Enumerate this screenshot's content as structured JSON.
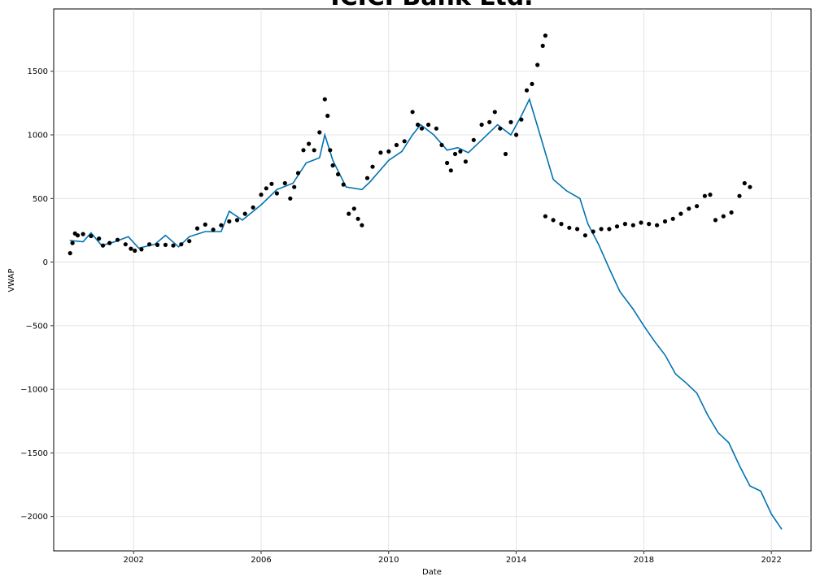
{
  "chart_data": {
    "type": "line",
    "title": "ICICI Bank Ltd.",
    "xlabel": "Date",
    "ylabel": "VWAP",
    "x_axis_type": "date",
    "xlim": [
      "1999-07-01",
      "2023-04-01"
    ],
    "ylim": [
      -2270,
      1990
    ],
    "x_ticks": [
      {
        "value": "2002-01-01",
        "label": "2002"
      },
      {
        "value": "2006-01-01",
        "label": "2006"
      },
      {
        "value": "2010-01-01",
        "label": "2010"
      },
      {
        "value": "2014-01-01",
        "label": "2014"
      },
      {
        "value": "2018-01-01",
        "label": "2018"
      },
      {
        "value": "2022-01-01",
        "label": "2022"
      }
    ],
    "y_ticks": [
      {
        "value": 1500,
        "label": "1500"
      },
      {
        "value": 1000,
        "label": "1000"
      },
      {
        "value": 500,
        "label": "500"
      },
      {
        "value": 0,
        "label": "0"
      },
      {
        "value": -500,
        "label": "−500"
      },
      {
        "value": -1000,
        "label": "−1000"
      },
      {
        "value": -1500,
        "label": "−1500"
      },
      {
        "value": -2000,
        "label": "−2000"
      }
    ],
    "grid": true,
    "series": [
      {
        "kind": "scatter",
        "color": "#000000",
        "points": [
          [
            "2000-01-05",
            70
          ],
          [
            "2000-02-01",
            150
          ],
          [
            "2000-03-01",
            225
          ],
          [
            "2000-04-01",
            210
          ],
          [
            "2000-06-01",
            220
          ],
          [
            "2000-09-01",
            205
          ],
          [
            "2000-12-01",
            185
          ],
          [
            "2001-01-15",
            130
          ],
          [
            "2001-04-01",
            150
          ],
          [
            "2001-07-01",
            175
          ],
          [
            "2001-10-01",
            140
          ],
          [
            "2001-12-01",
            105
          ],
          [
            "2002-01-15",
            90
          ],
          [
            "2002-04-01",
            100
          ],
          [
            "2002-07-01",
            140
          ],
          [
            "2002-10-01",
            135
          ],
          [
            "2003-01-01",
            135
          ],
          [
            "2003-04-01",
            130
          ],
          [
            "2003-07-01",
            140
          ],
          [
            "2003-10-01",
            165
          ],
          [
            "2004-01-01",
            265
          ],
          [
            "2004-04-01",
            295
          ],
          [
            "2004-07-01",
            255
          ],
          [
            "2004-10-01",
            290
          ],
          [
            "2005-01-01",
            320
          ],
          [
            "2005-04-01",
            330
          ],
          [
            "2005-07-01",
            380
          ],
          [
            "2005-10-01",
            430
          ],
          [
            "2006-01-01",
            530
          ],
          [
            "2006-03-01",
            580
          ],
          [
            "2006-05-01",
            615
          ],
          [
            "2006-07-01",
            540
          ],
          [
            "2006-10-01",
            620
          ],
          [
            "2006-12-01",
            500
          ],
          [
            "2007-01-15",
            590
          ],
          [
            "2007-03-01",
            700
          ],
          [
            "2007-05-01",
            880
          ],
          [
            "2007-07-01",
            930
          ],
          [
            "2007-09-01",
            880
          ],
          [
            "2007-11-01",
            1020
          ],
          [
            "2008-01-01",
            1280
          ],
          [
            "2008-02-01",
            1150
          ],
          [
            "2008-03-01",
            880
          ],
          [
            "2008-04-01",
            760
          ],
          [
            "2008-06-01",
            690
          ],
          [
            "2008-08-01",
            610
          ],
          [
            "2008-10-01",
            380
          ],
          [
            "2008-12-01",
            420
          ],
          [
            "2009-01-15",
            340
          ],
          [
            "2009-03-01",
            290
          ],
          [
            "2009-05-01",
            660
          ],
          [
            "2009-07-01",
            750
          ],
          [
            "2009-10-01",
            860
          ],
          [
            "2010-01-01",
            870
          ],
          [
            "2010-04-01",
            920
          ],
          [
            "2010-07-01",
            950
          ],
          [
            "2010-10-01",
            1180
          ],
          [
            "2010-12-01",
            1080
          ],
          [
            "2011-01-15",
            1050
          ],
          [
            "2011-04-01",
            1080
          ],
          [
            "2011-07-01",
            1050
          ],
          [
            "2011-09-01",
            920
          ],
          [
            "2011-11-01",
            780
          ],
          [
            "2011-12-15",
            720
          ],
          [
            "2012-02-01",
            850
          ],
          [
            "2012-04-01",
            870
          ],
          [
            "2012-06-01",
            790
          ],
          [
            "2012-09-01",
            960
          ],
          [
            "2012-12-01",
            1080
          ],
          [
            "2013-03-01",
            1100
          ],
          [
            "2013-05-01",
            1180
          ],
          [
            "2013-07-01",
            1050
          ],
          [
            "2013-09-01",
            850
          ],
          [
            "2013-11-01",
            1100
          ],
          [
            "2014-01-01",
            1000
          ],
          [
            "2014-03-01",
            1120
          ],
          [
            "2014-05-01",
            1350
          ],
          [
            "2014-07-01",
            1400
          ],
          [
            "2014-09-01",
            1550
          ],
          [
            "2014-11-01",
            1700
          ],
          [
            "2014-12-01",
            1780
          ],
          [
            "2014-12-01",
            360
          ],
          [
            "2015-03-01",
            330
          ],
          [
            "2015-06-01",
            300
          ],
          [
            "2015-09-01",
            270
          ],
          [
            "2015-12-01",
            260
          ],
          [
            "2016-03-01",
            210
          ],
          [
            "2016-06-01",
            240
          ],
          [
            "2016-09-01",
            260
          ],
          [
            "2016-12-01",
            260
          ],
          [
            "2017-03-01",
            280
          ],
          [
            "2017-06-01",
            300
          ],
          [
            "2017-09-01",
            290
          ],
          [
            "2017-12-01",
            310
          ],
          [
            "2018-03-01",
            300
          ],
          [
            "2018-06-01",
            290
          ],
          [
            "2018-09-01",
            320
          ],
          [
            "2018-12-01",
            340
          ],
          [
            "2019-03-01",
            380
          ],
          [
            "2019-06-01",
            420
          ],
          [
            "2019-09-01",
            440
          ],
          [
            "2019-12-01",
            520
          ],
          [
            "2020-02-01",
            530
          ],
          [
            "2020-04-01",
            330
          ],
          [
            "2020-07-01",
            360
          ],
          [
            "2020-10-01",
            390
          ],
          [
            "2021-01-01",
            520
          ],
          [
            "2021-03-01",
            620
          ],
          [
            "2021-05-01",
            590
          ]
        ]
      },
      {
        "kind": "line",
        "color": "#0072b2",
        "points": [
          [
            "2000-01-01",
            170
          ],
          [
            "2000-06-01",
            160
          ],
          [
            "2000-09-01",
            230
          ],
          [
            "2001-01-01",
            130
          ],
          [
            "2001-06-01",
            160
          ],
          [
            "2001-11-01",
            200
          ],
          [
            "2002-03-01",
            110
          ],
          [
            "2002-09-01",
            140
          ],
          [
            "2003-01-01",
            210
          ],
          [
            "2003-06-01",
            120
          ],
          [
            "2003-10-01",
            200
          ],
          [
            "2004-04-01",
            240
          ],
          [
            "2004-10-01",
            240
          ],
          [
            "2005-01-01",
            400
          ],
          [
            "2005-06-01",
            330
          ],
          [
            "2006-01-01",
            450
          ],
          [
            "2006-07-01",
            570
          ],
          [
            "2007-01-01",
            620
          ],
          [
            "2007-06-01",
            780
          ],
          [
            "2007-11-01",
            820
          ],
          [
            "2008-01-01",
            1000
          ],
          [
            "2008-04-01",
            800
          ],
          [
            "2008-09-01",
            590
          ],
          [
            "2009-03-01",
            570
          ],
          [
            "2009-06-01",
            630
          ],
          [
            "2010-01-01",
            800
          ],
          [
            "2010-06-01",
            870
          ],
          [
            "2010-10-01",
            1000
          ],
          [
            "2011-01-01",
            1080
          ],
          [
            "2011-06-01",
            1000
          ],
          [
            "2011-11-01",
            880
          ],
          [
            "2012-03-01",
            900
          ],
          [
            "2012-07-01",
            860
          ],
          [
            "2012-12-01",
            960
          ],
          [
            "2013-06-01",
            1080
          ],
          [
            "2013-11-01",
            1000
          ],
          [
            "2014-03-01",
            1150
          ],
          [
            "2014-06-01",
            1280
          ],
          [
            "2014-10-01",
            1000
          ],
          [
            "2015-03-01",
            650
          ],
          [
            "2015-08-01",
            560
          ],
          [
            "2016-01-01",
            500
          ],
          [
            "2016-04-01",
            300
          ],
          [
            "2016-08-01",
            140
          ],
          [
            "2016-12-01",
            -50
          ],
          [
            "2017-04-01",
            -230
          ],
          [
            "2017-09-01",
            -370
          ],
          [
            "2018-01-01",
            -500
          ],
          [
            "2018-05-01",
            -620
          ],
          [
            "2018-09-01",
            -730
          ],
          [
            "2019-01-01",
            -880
          ],
          [
            "2019-05-01",
            -950
          ],
          [
            "2019-09-01",
            -1030
          ],
          [
            "2020-01-01",
            -1200
          ],
          [
            "2020-05-01",
            -1340
          ],
          [
            "2020-09-01",
            -1420
          ],
          [
            "2021-01-01",
            -1600
          ],
          [
            "2021-05-01",
            -1760
          ],
          [
            "2021-09-01",
            -1800
          ],
          [
            "2022-01-01",
            -1980
          ],
          [
            "2022-05-01",
            -2100
          ]
        ]
      }
    ]
  }
}
